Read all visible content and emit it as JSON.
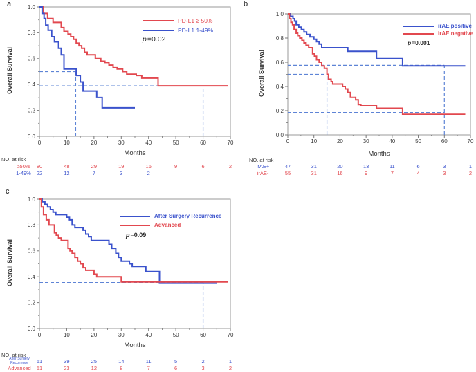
{
  "colors": {
    "red": "#e2484f",
    "blue": "#3a52cc",
    "dashed": "#5e84d6",
    "axis": "#9a9a9a",
    "tick": "#777777",
    "tick_text": "#3c3c3c",
    "label_text": "#333333"
  },
  "chart_data": [
    {
      "id": "a",
      "panel_label": "a",
      "type": "line",
      "subtype": "kaplan-meier-step",
      "ylabel": "Overall Survival",
      "xlabel": "Months",
      "xlim": [
        0,
        70
      ],
      "ylim": [
        0.0,
        1.0
      ],
      "xticks": [
        0,
        10,
        20,
        30,
        40,
        50,
        60,
        70
      ],
      "yticks": [
        0.0,
        0.2,
        0.4,
        0.6,
        0.8,
        1.0
      ],
      "grid": false,
      "legend_position": "top-right",
      "annotation": {
        "symbol": "p",
        "value": "=0.02"
      },
      "series": [
        {
          "name": "PD-L1 ≥ 50%",
          "color": "#e2484f",
          "start": [
            0,
            1.0
          ],
          "drops": [
            [
              1.5,
              0.95
            ],
            [
              3,
              0.91
            ],
            [
              5,
              0.88
            ],
            [
              8,
              0.84
            ],
            [
              9,
              0.81
            ],
            [
              10.5,
              0.79
            ],
            [
              11.5,
              0.77
            ],
            [
              12.5,
              0.75
            ],
            [
              13.5,
              0.72
            ],
            [
              14.5,
              0.7
            ],
            [
              15.5,
              0.68
            ],
            [
              16.5,
              0.65
            ],
            [
              17.5,
              0.63
            ],
            [
              20.5,
              0.6
            ],
            [
              22.5,
              0.58
            ],
            [
              24,
              0.57
            ],
            [
              25.5,
              0.55
            ],
            [
              27,
              0.53
            ],
            [
              28.5,
              0.52
            ],
            [
              30.5,
              0.5
            ],
            [
              32,
              0.48
            ],
            [
              35.5,
              0.47
            ],
            [
              37.5,
              0.45
            ],
            [
              43.5,
              0.39
            ]
          ],
          "end_x": 69
        },
        {
          "name": "PD-L1 1-49%",
          "color": "#3a52cc",
          "start": [
            0,
            1.0
          ],
          "drops": [
            [
              1,
              0.95
            ],
            [
              1.7,
              0.91
            ],
            [
              2.3,
              0.86
            ],
            [
              3.2,
              0.82
            ],
            [
              4.5,
              0.77
            ],
            [
              5.5,
              0.73
            ],
            [
              7,
              0.68
            ],
            [
              8,
              0.63
            ],
            [
              9,
              0.52
            ],
            [
              13.5,
              0.47
            ],
            [
              15,
              0.42
            ],
            [
              16,
              0.35
            ],
            [
              21,
              0.3
            ],
            [
              23,
              0.22
            ]
          ],
          "end_x": 35
        }
      ],
      "reference_lines": [
        {
          "orient": "h",
          "y": 0.5,
          "x0": 0,
          "x1": 13.3
        },
        {
          "orient": "v",
          "x": 13.3,
          "y0": 0,
          "y1": 0.5
        },
        {
          "orient": "h",
          "y": 0.39,
          "x0": 0,
          "x1": 60
        },
        {
          "orient": "v",
          "x": 60,
          "y0": 0,
          "y1": 0.39
        }
      ],
      "risk_table": {
        "title": "NO. at risk",
        "rows": [
          {
            "label": "≥50%",
            "color": "#e2484f",
            "counts": [
              80,
              48,
              29,
              19,
              16,
              9,
              6,
              2
            ]
          },
          {
            "label": "1-49%",
            "color": "#3a52cc",
            "counts": [
              22,
              12,
              7,
              3,
              2
            ]
          }
        ]
      }
    },
    {
      "id": "b",
      "panel_label": "b",
      "type": "line",
      "subtype": "kaplan-meier-step",
      "ylabel": "Overall Survival",
      "xlabel": "Months",
      "xlim": [
        0,
        70
      ],
      "ylim": [
        0.0,
        1.0
      ],
      "xticks": [
        0,
        10,
        20,
        30,
        40,
        50,
        60,
        70
      ],
      "yticks": [
        0.0,
        0.2,
        0.4,
        0.6,
        0.8,
        1.0
      ],
      "grid": false,
      "legend_position": "top-right",
      "annotation": {
        "symbol": "p",
        "value": "=0.001"
      },
      "series": [
        {
          "name": "irAE positive",
          "color": "#3a52cc",
          "start": [
            0,
            1.0
          ],
          "drops": [
            [
              1,
              0.98
            ],
            [
              2,
              0.96
            ],
            [
              2.6,
              0.94
            ],
            [
              3.2,
              0.91
            ],
            [
              4.2,
              0.89
            ],
            [
              5.2,
              0.87
            ],
            [
              6.2,
              0.85
            ],
            [
              7.2,
              0.83
            ],
            [
              8.5,
              0.81
            ],
            [
              10,
              0.79
            ],
            [
              11,
              0.77
            ],
            [
              12,
              0.75
            ],
            [
              13,
              0.72
            ],
            [
              23,
              0.69
            ],
            [
              34,
              0.63
            ],
            [
              44,
              0.57
            ]
          ],
          "end_x": 68
        },
        {
          "name": "irAE negative",
          "color": "#e2484f",
          "start": [
            0,
            1.0
          ],
          "drops": [
            [
              0.6,
              0.96
            ],
            [
              1.2,
              0.93
            ],
            [
              1.8,
              0.91
            ],
            [
              2.4,
              0.87
            ],
            [
              3.2,
              0.84
            ],
            [
              3.8,
              0.82
            ],
            [
              4.6,
              0.8
            ],
            [
              5.4,
              0.78
            ],
            [
              6.2,
              0.76
            ],
            [
              7,
              0.74
            ],
            [
              8,
              0.72
            ],
            [
              9.5,
              0.67
            ],
            [
              10.2,
              0.65
            ],
            [
              11,
              0.62
            ],
            [
              12,
              0.6
            ],
            [
              13,
              0.57
            ],
            [
              14,
              0.55
            ],
            [
              15,
              0.5
            ],
            [
              15.6,
              0.46
            ],
            [
              16.6,
              0.44
            ],
            [
              17.2,
              0.42
            ],
            [
              21,
              0.4
            ],
            [
              22,
              0.38
            ],
            [
              23,
              0.35
            ],
            [
              24,
              0.31
            ],
            [
              26,
              0.29
            ],
            [
              27,
              0.25
            ],
            [
              28,
              0.24
            ],
            [
              34,
              0.22
            ],
            [
              44,
              0.17
            ]
          ],
          "end_x": 68
        }
      ],
      "reference_lines": [
        {
          "orient": "h",
          "y": 0.575,
          "x0": 0,
          "x1": 60
        },
        {
          "orient": "h",
          "y": 0.5,
          "x0": 0,
          "x1": 15
        },
        {
          "orient": "v",
          "x": 15,
          "y0": 0,
          "y1": 0.5
        },
        {
          "orient": "h",
          "y": 0.185,
          "x0": 0,
          "x1": 60
        },
        {
          "orient": "v",
          "x": 60,
          "y0": 0,
          "y1": 0.575
        }
      ],
      "risk_table": {
        "title": "NO. at risk",
        "rows": [
          {
            "label": "irAE+",
            "color": "#3a52cc",
            "counts": [
              47,
              31,
              20,
              13,
              11,
              6,
              3,
              1
            ]
          },
          {
            "label": "irAE-",
            "color": "#e2484f",
            "counts": [
              55,
              31,
              16,
              9,
              7,
              4,
              3,
              2
            ]
          }
        ]
      }
    },
    {
      "id": "c",
      "panel_label": "c",
      "type": "line",
      "subtype": "kaplan-meier-step",
      "ylabel": "Overall Survival",
      "xlabel": "Months",
      "xlim": [
        0,
        70
      ],
      "ylim": [
        0.0,
        1.0
      ],
      "xticks": [
        0,
        10,
        20,
        30,
        40,
        50,
        60,
        70
      ],
      "yticks": [
        0.0,
        0.2,
        0.4,
        0.6,
        0.8,
        1.0
      ],
      "grid": false,
      "legend_position": "top-right",
      "annotation": {
        "symbol": "p",
        "value": "=0.09"
      },
      "series": [
        {
          "name": "After Surgery Recurrence",
          "color": "#3a52cc",
          "start": [
            0,
            1.0
          ],
          "drops": [
            [
              1,
              0.98
            ],
            [
              2,
              0.96
            ],
            [
              3,
              0.94
            ],
            [
              4,
              0.92
            ],
            [
              5,
              0.9
            ],
            [
              6,
              0.88
            ],
            [
              10,
              0.86
            ],
            [
              11,
              0.84
            ],
            [
              12,
              0.8
            ],
            [
              13,
              0.78
            ],
            [
              16,
              0.76
            ],
            [
              17,
              0.73
            ],
            [
              18,
              0.71
            ],
            [
              19,
              0.68
            ],
            [
              25.5,
              0.65
            ],
            [
              26.5,
              0.62
            ],
            [
              28,
              0.58
            ],
            [
              29,
              0.55
            ],
            [
              30,
              0.52
            ],
            [
              33,
              0.5
            ],
            [
              34,
              0.48
            ],
            [
              39,
              0.44
            ],
            [
              44,
              0.35
            ]
          ],
          "end_x": 65
        },
        {
          "name": "Advanced",
          "color": "#e2484f",
          "start": [
            0,
            1.0
          ],
          "drops": [
            [
              0.7,
              0.94
            ],
            [
              1.5,
              0.88
            ],
            [
              2.5,
              0.84
            ],
            [
              3.5,
              0.8
            ],
            [
              5.5,
              0.74
            ],
            [
              6.2,
              0.72
            ],
            [
              7,
              0.7
            ],
            [
              8,
              0.68
            ],
            [
              10.5,
              0.62
            ],
            [
              11.2,
              0.6
            ],
            [
              12,
              0.58
            ],
            [
              13,
              0.55
            ],
            [
              14,
              0.52
            ],
            [
              15,
              0.5
            ],
            [
              16,
              0.47
            ],
            [
              17,
              0.45
            ],
            [
              20,
              0.42
            ],
            [
              21,
              0.4
            ],
            [
              30,
              0.36
            ]
          ],
          "end_x": 69
        }
      ],
      "reference_lines": [
        {
          "orient": "h",
          "y": 0.355,
          "x0": 0,
          "x1": 60
        },
        {
          "orient": "v",
          "x": 60,
          "y0": 0,
          "y1": 0.355
        }
      ],
      "risk_table": {
        "title": "NO. at risk",
        "rows": [
          {
            "label": "After Surgery Recurrence",
            "label_lines": [
              "After Surgery",
              "Recurrence"
            ],
            "color": "#3a52cc",
            "counts": [
              51,
              39,
              25,
              14,
              11,
              5,
              2,
              1
            ]
          },
          {
            "label": "Advanced",
            "color": "#e2484f",
            "counts": [
              51,
              23,
              12,
              8,
              7,
              6,
              3,
              2
            ]
          }
        ]
      }
    }
  ]
}
